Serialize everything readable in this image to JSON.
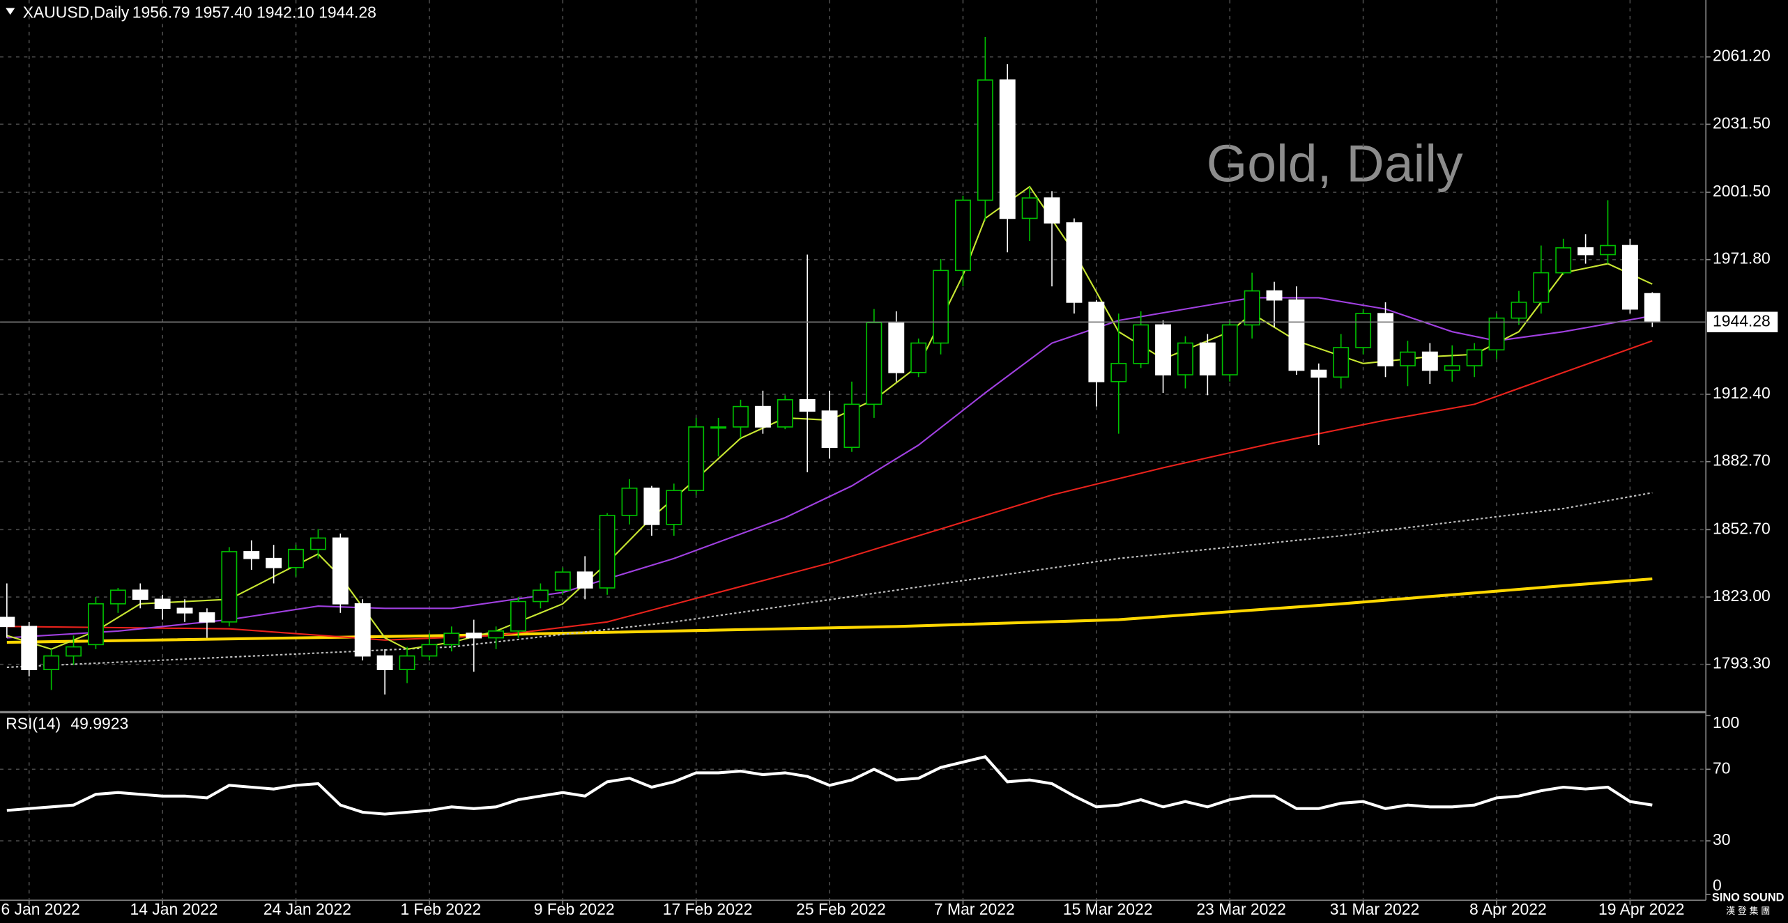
{
  "chart_data": [
    {
      "type": "candlestick",
      "title": "XAUUSD,Daily",
      "subtitle": "1956.79 1957.40 1942.10 1944.28",
      "annotation": "Gold, Daily",
      "logo": "SINO SOUND",
      "logo_sub": "漢 登 集 團",
      "categories": [
        null,
        "6 Jan 2022",
        null,
        null,
        null,
        null,
        null,
        "14 Jan 2022",
        null,
        null,
        null,
        null,
        null,
        "24 Jan 2022",
        null,
        null,
        null,
        null,
        null,
        "1 Feb 2022",
        null,
        null,
        null,
        null,
        null,
        "9 Feb 2022",
        null,
        null,
        null,
        null,
        null,
        "17 Feb 2022",
        null,
        null,
        null,
        null,
        null,
        "25 Feb 2022",
        null,
        null,
        null,
        null,
        null,
        "7 Mar 2022",
        null,
        null,
        null,
        null,
        null,
        "15 Mar 2022",
        null,
        null,
        null,
        null,
        null,
        "23 Mar 2022",
        null,
        null,
        null,
        null,
        null,
        "31 Mar 2022",
        null,
        null,
        null,
        null,
        null,
        "8 Apr 2022",
        null,
        null,
        null,
        null,
        null,
        "19 Apr 2022",
        null
      ],
      "open": [
        1814,
        1810,
        1791,
        1797,
        1802,
        1820,
        1826,
        1822,
        1818,
        1816,
        1812,
        1843,
        1840,
        1836,
        1844,
        1849,
        1820,
        1797,
        1791,
        1797,
        1802,
        1807,
        1805,
        1808,
        1821,
        1826,
        1834,
        1827,
        1859,
        1871,
        1855,
        1870,
        1898,
        1898,
        1907,
        1898,
        1910,
        1905,
        1889,
        1908,
        1944,
        1922,
        1935,
        1967,
        1998,
        2051,
        1990,
        1999,
        1988,
        1953,
        1918,
        1926,
        1943,
        1921,
        1935,
        1921,
        1943,
        1958,
        1954,
        1923,
        1920,
        1933,
        1948,
        1925,
        1931,
        1923,
        1925,
        1932,
        1946,
        1953,
        1966,
        1977,
        1974,
        1978,
        1956.79
      ],
      "high": [
        1829,
        1812,
        1800,
        1806,
        1823,
        1827,
        1829,
        1824,
        1822,
        1818,
        1845,
        1848,
        1846,
        1846,
        1853,
        1851,
        1822,
        1800,
        1801,
        1807,
        1810,
        1813,
        1810,
        1823,
        1829,
        1836,
        1841,
        1860,
        1875,
        1872,
        1873,
        1902,
        1902,
        1910,
        1914,
        1912,
        1974,
        1914,
        1918,
        1950,
        1949,
        1937,
        1972,
        2000,
        2070,
        2058,
        2004,
        2002,
        1990,
        1954,
        1948,
        1949,
        1945,
        1938,
        1939,
        1945,
        1966,
        1962,
        1960,
        1926,
        1939,
        1950,
        1953,
        1936,
        1935,
        1934,
        1935,
        1948,
        1958,
        1978,
        1981,
        1983,
        1998,
        1981,
        1957.4
      ],
      "low": [
        1805,
        1788,
        1782,
        1793,
        1800,
        1816,
        1818,
        1813,
        1812,
        1805,
        1810,
        1835,
        1829,
        1832,
        1840,
        1816,
        1795,
        1780,
        1785,
        1795,
        1799,
        1790,
        1800,
        1805,
        1818,
        1824,
        1822,
        1824,
        1855,
        1850,
        1850,
        1868,
        1885,
        1893,
        1895,
        1897,
        1878,
        1884,
        1887,
        1902,
        1918,
        1920,
        1930,
        1960,
        1989,
        1975,
        1980,
        1960,
        1948,
        1907,
        1895,
        1924,
        1913,
        1915,
        1912,
        1918,
        1937,
        1942,
        1921,
        1890,
        1915,
        1930,
        1920,
        1916,
        1917,
        1918,
        1920,
        1928,
        1943,
        1948,
        1965,
        1970,
        1970,
        1948,
        1942.1
      ],
      "close": [
        1810,
        1791,
        1797,
        1801,
        1820,
        1826,
        1822,
        1818,
        1816,
        1812,
        1843,
        1840,
        1836,
        1844,
        1849,
        1820,
        1797,
        1791,
        1797,
        1802,
        1807,
        1805,
        1808,
        1821,
        1826,
        1834,
        1827,
        1859,
        1871,
        1855,
        1870,
        1898,
        1898,
        1907,
        1898,
        1910,
        1905,
        1889,
        1908,
        1944,
        1922,
        1935,
        1967,
        1998,
        2051,
        1990,
        1999,
        1988,
        1953,
        1918,
        1926,
        1943,
        1921,
        1935,
        1921,
        1943,
        1958,
        1954,
        1923,
        1920,
        1933,
        1948,
        1925,
        1931,
        1923,
        1925,
        1932,
        1946,
        1953,
        1966,
        1977,
        1974,
        1978,
        1950,
        1944.28
      ],
      "bull_color": "#00c000",
      "bear_color": "#ffffff",
      "overlays": [
        {
          "color": "#ffd700",
          "x": [
            0,
            20,
            40,
            50,
            60,
            70,
            74
          ],
          "values": [
            1803,
            1806,
            1810,
            1813,
            1820,
            1828,
            1831
          ]
        },
        {
          "color": "#c0c0c0",
          "dashed": true,
          "x": [
            0,
            20,
            30,
            40,
            50,
            60,
            70,
            74
          ],
          "values": [
            1792,
            1801,
            1812,
            1826,
            1840,
            1850,
            1862,
            1869
          ]
        },
        {
          "color": "#e8221c",
          "x": [
            0,
            10,
            17,
            22,
            27,
            32,
            37,
            42,
            47,
            52,
            57,
            62,
            66,
            70,
            74
          ],
          "values": [
            1810,
            1809,
            1804,
            1806,
            1812,
            1825,
            1838,
            1853,
            1868,
            1880,
            1891,
            1901,
            1908,
            1922,
            1936
          ]
        },
        {
          "color": "#a040e0",
          "x": [
            0,
            5,
            10,
            14,
            17,
            20,
            25,
            30,
            35,
            38,
            41,
            44,
            47,
            50,
            53,
            56,
            59,
            62,
            65,
            67,
            70,
            74
          ],
          "values": [
            1805,
            1808,
            1813,
            1819,
            1818,
            1818,
            1825,
            1840,
            1858,
            1872,
            1890,
            1913,
            1935,
            1945,
            1950,
            1955,
            1955,
            1950,
            1940,
            1936,
            1940,
            1947
          ]
        },
        {
          "color": "#c8e632",
          "x": [
            0,
            2,
            4,
            6,
            8,
            10,
            12,
            14,
            15,
            17,
            18,
            20,
            22,
            25,
            27,
            29,
            31,
            33,
            35,
            37,
            39,
            41,
            43,
            44,
            46,
            48,
            50,
            52,
            55,
            56,
            58,
            61,
            64,
            66,
            68,
            70,
            72,
            74
          ],
          "values": [
            1806,
            1800,
            1808,
            1820,
            1821,
            1822,
            1832,
            1842,
            1832,
            1805,
            1800,
            1803,
            1808,
            1820,
            1838,
            1858,
            1875,
            1893,
            1902,
            1901,
            1910,
            1925,
            1965,
            1990,
            2004,
            1975,
            1940,
            1928,
            1940,
            1948,
            1936,
            1926,
            1929,
            1930,
            1940,
            1966,
            1970,
            1961
          ]
        }
      ],
      "last_price": {
        "value": 1944.28,
        "label": "1944.28"
      },
      "ylim": [
        1772.7,
        2086.3
      ],
      "yticks": [
        {
          "value": 2061.2,
          "label": "2061.20"
        },
        {
          "value": 2031.5,
          "label": "2031.50"
        },
        {
          "value": 2001.5,
          "label": "2001.50"
        },
        {
          "value": 1971.8,
          "label": "1971.80"
        },
        {
          "value": 1912.4,
          "label": "1912.40"
        },
        {
          "value": 1882.7,
          "label": "1882.70"
        },
        {
          "value": 1852.7,
          "label": "1852.70"
        },
        {
          "value": 1823,
          "label": "1823.00"
        },
        {
          "value": 1793.3,
          "label": "1793.30"
        }
      ],
      "grid": true
    },
    {
      "type": "line",
      "title": "RSI(14)",
      "current": 49.9923,
      "color": "#ffffff",
      "values": [
        47,
        48,
        49,
        50,
        56,
        57,
        56,
        55,
        55,
        54,
        61,
        60,
        59,
        61,
        62,
        50,
        46,
        45,
        46,
        47,
        49,
        48,
        49,
        53,
        55,
        57,
        55,
        63,
        65,
        60,
        63,
        68,
        68,
        69,
        67,
        68,
        66,
        61,
        64,
        70,
        64,
        65,
        71,
        74,
        77,
        63,
        64,
        62,
        55,
        49,
        50,
        53,
        49,
        52,
        49,
        53,
        55,
        55,
        48,
        48,
        51,
        52,
        48,
        50,
        49,
        49,
        50,
        54,
        55,
        58,
        60,
        59,
        60,
        52,
        49.9923
      ],
      "ylim": [
        0,
        100
      ],
      "yticks": [
        100,
        70,
        30,
        0
      ],
      "grid": true
    }
  ]
}
